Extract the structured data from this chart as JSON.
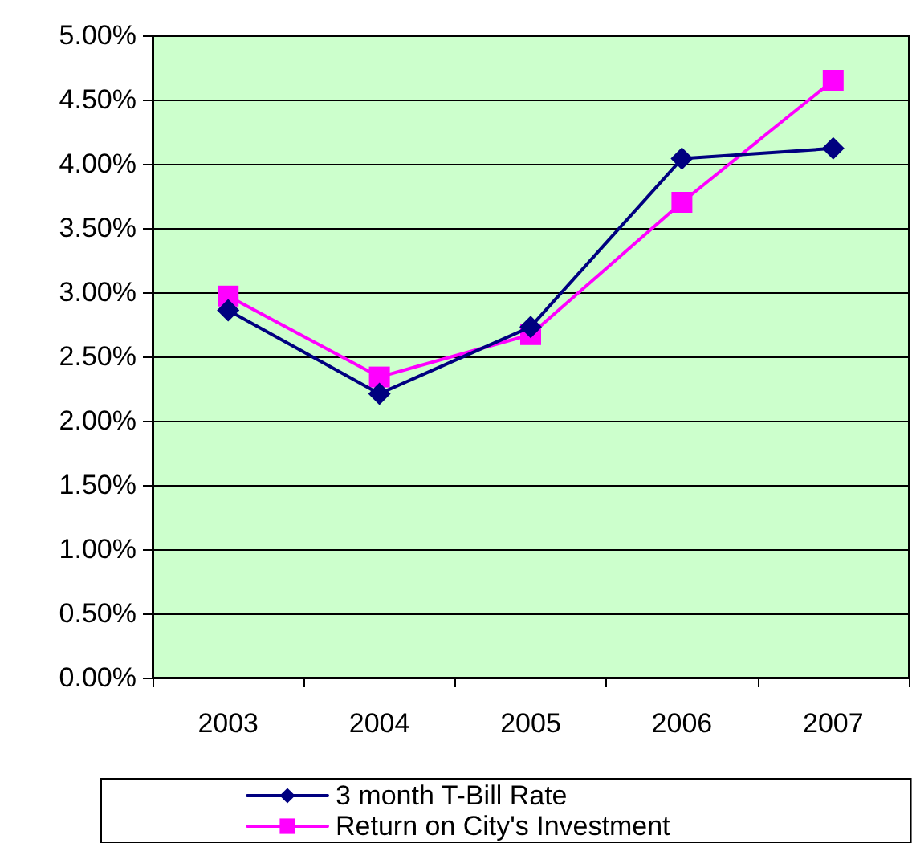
{
  "chart_data": {
    "type": "line",
    "categories": [
      "2003",
      "2004",
      "2005",
      "2006",
      "2007"
    ],
    "series": [
      {
        "name": "3 month T-Bill Rate",
        "color": "#000080",
        "marker": "diamond",
        "values": [
          2.86,
          2.21,
          2.73,
          4.04,
          4.12
        ]
      },
      {
        "name": "Return on City's Investment",
        "color": "#ff00ff",
        "marker": "square",
        "values": [
          2.97,
          2.34,
          2.67,
          3.7,
          4.65
        ]
      }
    ],
    "ylim": [
      0,
      5
    ],
    "yticks": [
      {
        "value": 0,
        "label": "0.00%"
      },
      {
        "value": 0.5,
        "label": "0.50%"
      },
      {
        "value": 1,
        "label": "1.00%"
      },
      {
        "value": 1.5,
        "label": "1.50%"
      },
      {
        "value": 2,
        "label": "2.00%"
      },
      {
        "value": 2.5,
        "label": "2.50%"
      },
      {
        "value": 3,
        "label": "3.00%"
      },
      {
        "value": 3.5,
        "label": "3.50%"
      },
      {
        "value": 4,
        "label": "4.00%"
      },
      {
        "value": 4.5,
        "label": "4.50%"
      },
      {
        "value": 5,
        "label": "5.00%"
      }
    ],
    "grid": "y",
    "legend": "bottom",
    "line_style": "solid"
  }
}
